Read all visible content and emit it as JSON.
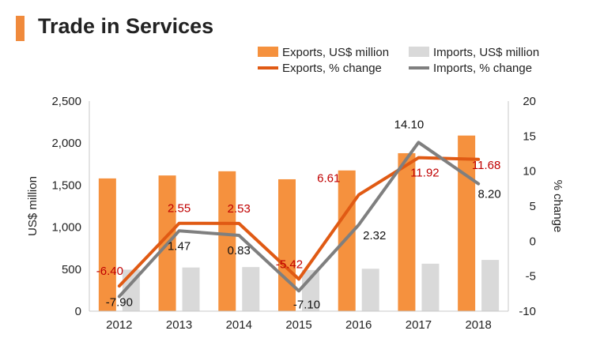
{
  "title": "Trade in Services",
  "colors": {
    "exports_bar": "#f5913e",
    "imports_bar": "#d9d9d9",
    "exports_line": "#e05a14",
    "imports_line": "#7f7f7f",
    "exports_label": "#c00000",
    "imports_label": "#111111",
    "title_accent": "#f08a3c"
  },
  "chart_data": {
    "type": "bar",
    "categories": [
      "2012",
      "2013",
      "2014",
      "2015",
      "2016",
      "2017",
      "2018"
    ],
    "series": [
      {
        "name": "Exports, US$ million",
        "kind": "bar",
        "axis": "left",
        "values": [
          1580,
          1615,
          1665,
          1570,
          1675,
          1880,
          2090
        ]
      },
      {
        "name": "Imports, US$ million",
        "kind": "bar",
        "axis": "left",
        "values": [
          495,
          520,
          525,
          490,
          505,
          565,
          610
        ]
      },
      {
        "name": "Exports, % change",
        "kind": "line",
        "axis": "right",
        "values": [
          -6.4,
          2.55,
          2.53,
          -5.42,
          6.61,
          11.92,
          11.68
        ],
        "labels": [
          "-6.40",
          "2.55",
          "2.53",
          "-5.42",
          "6.61",
          "11.92",
          "11.68"
        ]
      },
      {
        "name": "Imports, % change",
        "kind": "line",
        "axis": "right",
        "values": [
          -7.9,
          1.47,
          0.83,
          -7.1,
          2.32,
          14.1,
          8.2
        ],
        "labels": [
          "-7.90",
          "1.47",
          "0.83",
          "-7.10",
          "2.32",
          "14.10",
          "8.20"
        ]
      }
    ],
    "ylabel": "US$ million",
    "y2label": "% change",
    "ylim": [
      0,
      2500
    ],
    "y2lim": [
      -10,
      20
    ],
    "yticks": [
      "0",
      "500",
      "1,000",
      "1,500",
      "2,000",
      "2,500"
    ],
    "y2ticks": [
      "-10",
      "-5",
      "0",
      "5",
      "10",
      "15",
      "20"
    ],
    "legend": "top-right",
    "grid": false
  }
}
